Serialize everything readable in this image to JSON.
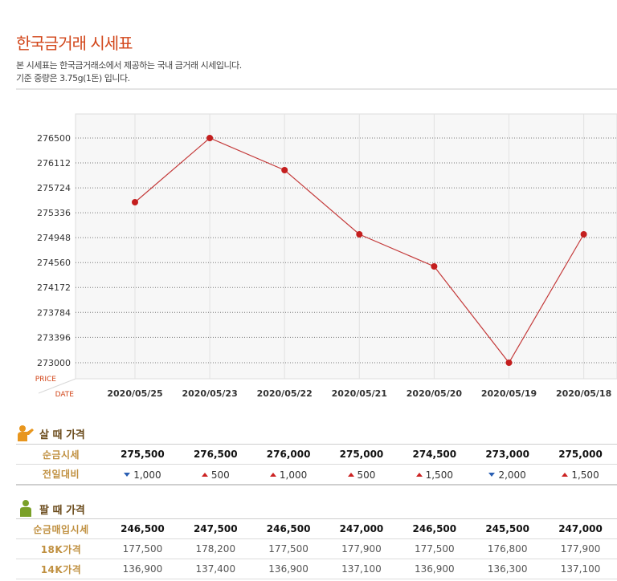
{
  "page": {
    "title": "한국금거래 시세표",
    "desc1": "본 시세표는 한국금거래소에서 제공하는 국내 금거래 시세입니다.",
    "desc2": "기준 중량은 3.75g(1돈) 입니다."
  },
  "chart_data": {
    "type": "line",
    "xlabel": "DATE",
    "ylabel": "PRICE",
    "categories": [
      "2020/05/25",
      "2020/05/23",
      "2020/05/22",
      "2020/05/21",
      "2020/05/20",
      "2020/05/19",
      "2020/05/18"
    ],
    "series": [
      {
        "values": [
          275500,
          276500,
          276000,
          275000,
          274500,
          273000,
          275000
        ]
      }
    ],
    "yticks": [
      "273000",
      "273396",
      "273784",
      "274172",
      "274560",
      "274948",
      "275336",
      "275724",
      "276112",
      "276500"
    ],
    "ylim": [
      273000,
      276500
    ],
    "grid": true,
    "colors": {
      "line": "#c43a3a",
      "point": "#c41e1e",
      "axis_label": "#d2461a"
    }
  },
  "buy": {
    "title": "살 때 가격",
    "row1_label": "순금시세",
    "row1": [
      "275,500",
      "276,500",
      "276,000",
      "275,000",
      "274,500",
      "273,000",
      "275,000"
    ],
    "row2_label": "전일대비",
    "row2": [
      {
        "dir": "down",
        "value": "1,000"
      },
      {
        "dir": "up",
        "value": "500"
      },
      {
        "dir": "up",
        "value": "1,000"
      },
      {
        "dir": "up",
        "value": "500"
      },
      {
        "dir": "up",
        "value": "1,500"
      },
      {
        "dir": "down",
        "value": "2,000"
      },
      {
        "dir": "up",
        "value": "1,500"
      }
    ]
  },
  "sell": {
    "title": "팔 때 가격",
    "row1_label": "순금매입시세",
    "row1": [
      "246,500",
      "247,500",
      "246,500",
      "247,000",
      "246,500",
      "245,500",
      "247,000"
    ],
    "row2_label": "18K가격",
    "row2": [
      "177,500",
      "178,200",
      "177,500",
      "177,900",
      "177,500",
      "176,800",
      "177,900"
    ],
    "row3_label": "14K가격",
    "row3": [
      "136,900",
      "137,400",
      "136,900",
      "137,100",
      "136,900",
      "136,300",
      "137,100"
    ]
  },
  "icons": {
    "buy": "person-buy-icon",
    "sell": "person-sell-icon"
  }
}
